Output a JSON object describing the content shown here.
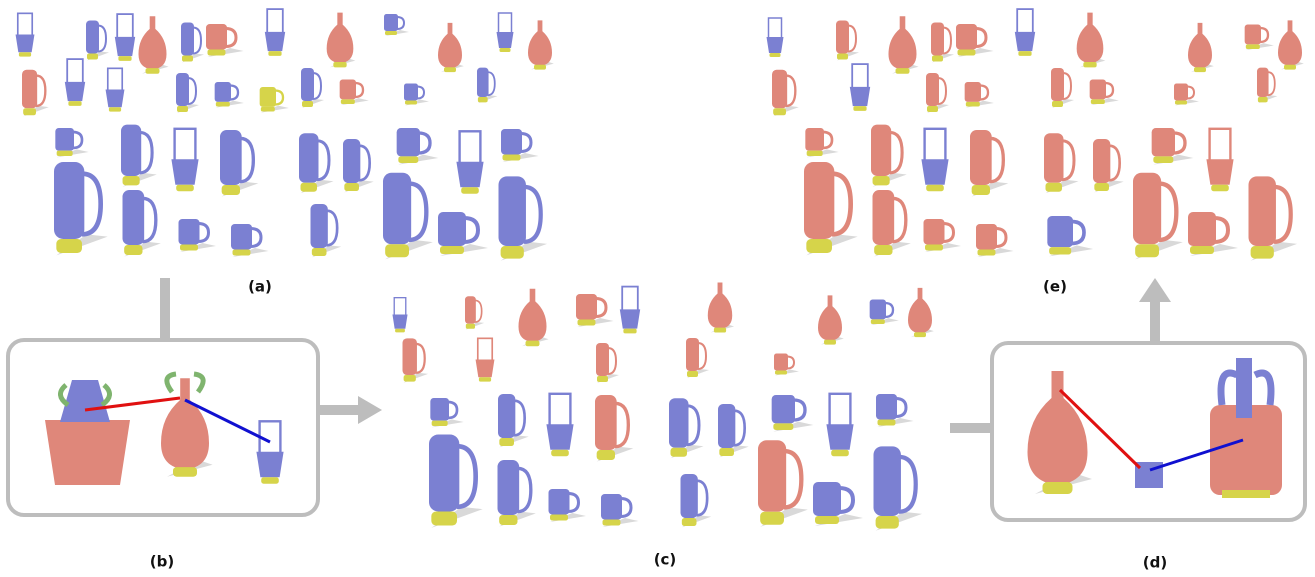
{
  "figure": {
    "panels": [
      {
        "label": "(a)"
      },
      {
        "label": "(b)"
      },
      {
        "label": "(c)"
      },
      {
        "label": "(d)"
      },
      {
        "label": "(e)"
      }
    ]
  }
}
